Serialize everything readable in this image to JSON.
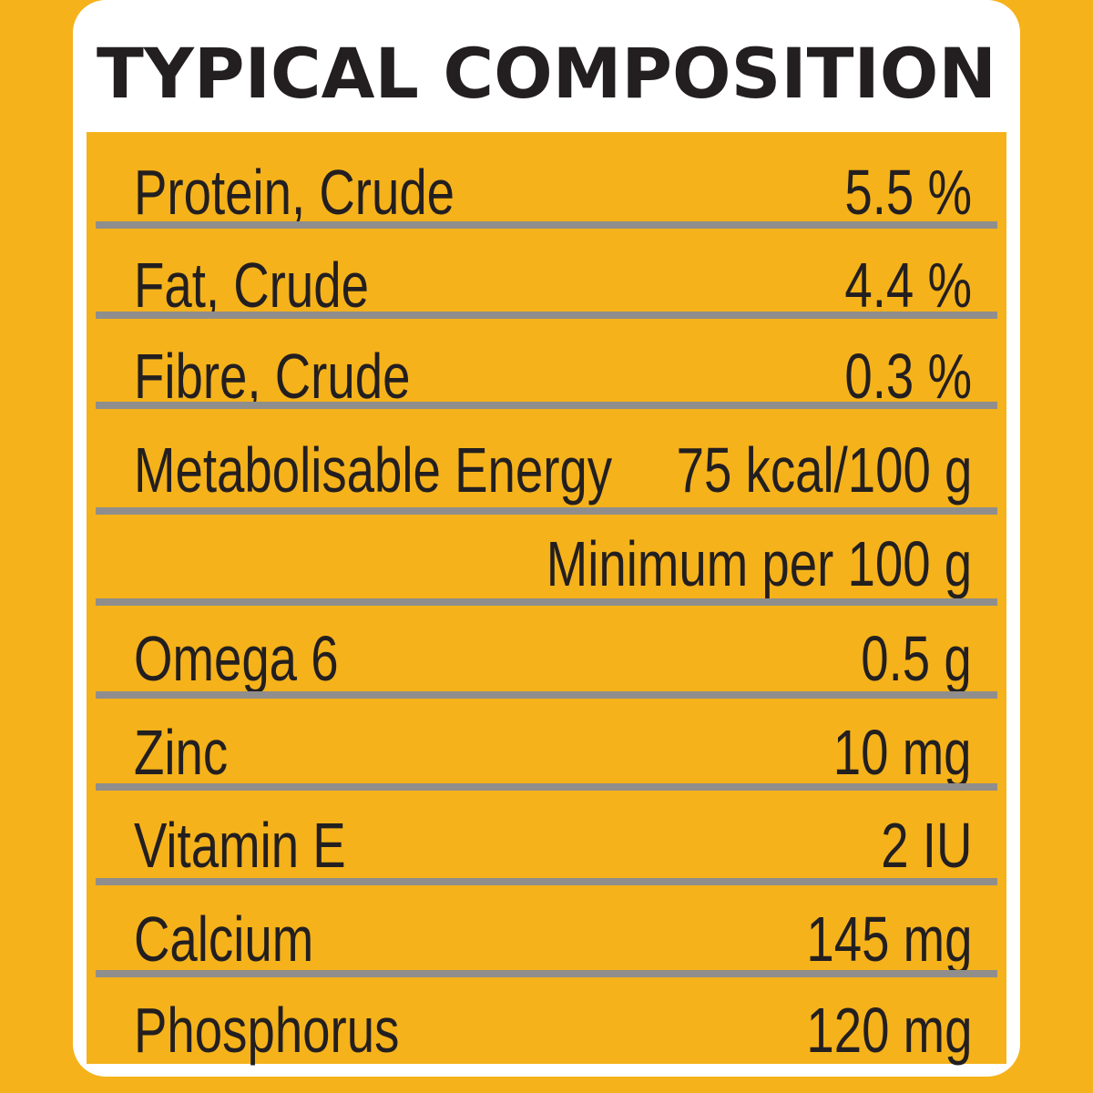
{
  "title": "TYPICAL COMPOSITION",
  "colors": {
    "panel": "#f5b21a",
    "text": "#231f20",
    "rule": "#8f8e8c",
    "card": "#ffffff"
  },
  "rows": [
    {
      "label": "Protein, Crude",
      "value": "5.5 %"
    },
    {
      "label": "Fat, Crude",
      "value": "4.4 %"
    },
    {
      "label": "Fibre, Crude",
      "value": "0.3 %"
    },
    {
      "label": "Metabolisable Energy",
      "value": "75 kcal/100 g"
    },
    {
      "label": "",
      "value": "Minimum per 100 g"
    },
    {
      "label": "Omega 6",
      "value": "0.5 g"
    },
    {
      "label": "Zinc",
      "value": "10 mg"
    },
    {
      "label": "Vitamin E",
      "value": "2 IU"
    },
    {
      "label": "Calcium",
      "value": "145 mg"
    },
    {
      "label": "Phosphorus",
      "value": "120 mg"
    }
  ]
}
